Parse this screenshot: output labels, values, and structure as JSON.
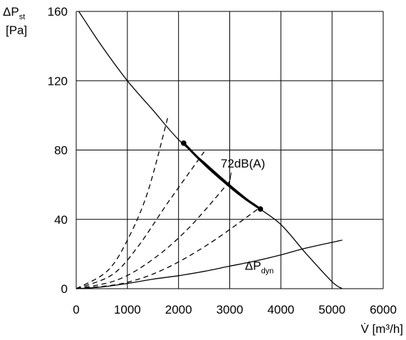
{
  "chart_data": {
    "type": "line",
    "ylabel": {
      "symbol": "ΔP",
      "subscript": "st",
      "unit": "[Pa]"
    },
    "xlabel": "V̇ [m³/h]",
    "xlim": [
      0,
      6000
    ],
    "ylim": [
      0,
      160
    ],
    "x_ticks": [
      "0",
      "1000",
      "2000",
      "3000",
      "4000",
      "5000",
      "6000"
    ],
    "y_ticks": [
      "0",
      "40",
      "80",
      "120",
      "160"
    ],
    "grid": true,
    "series": [
      {
        "role": "fan-curve",
        "points": [
          [
            50,
            160
          ],
          [
            500,
            140
          ],
          [
            1000,
            120
          ],
          [
            1500,
            103
          ],
          [
            2000,
            86
          ],
          [
            2500,
            73
          ],
          [
            3000,
            60
          ],
          [
            3500,
            48
          ],
          [
            4000,
            37
          ],
          [
            4500,
            20
          ],
          [
            5000,
            4
          ],
          [
            5200,
            0
          ]
        ]
      },
      {
        "role": "operating-range",
        "points": [
          [
            2100,
            84
          ],
          [
            2500,
            72
          ],
          [
            3000,
            59
          ],
          [
            3300,
            52
          ],
          [
            3600,
            46
          ]
        ],
        "endpoints": [
          [
            2100,
            84
          ],
          [
            3600,
            46
          ]
        ]
      },
      {
        "role": "system-curve",
        "points": [
          [
            0,
            0
          ],
          [
            500,
            1
          ],
          [
            1000,
            3
          ],
          [
            1500,
            5.5
          ],
          [
            2000,
            7.5
          ],
          [
            2500,
            10
          ],
          [
            3000,
            13
          ],
          [
            3500,
            16
          ],
          [
            4000,
            19.5
          ],
          [
            4500,
            23.5
          ],
          [
            5200,
            28
          ]
        ]
      },
      {
        "role": "system-parabola",
        "points": [
          [
            0,
            0
          ],
          [
            600,
            10
          ],
          [
            1000,
            28
          ],
          [
            1400,
            56
          ],
          [
            1800,
            100
          ]
        ]
      },
      {
        "role": "system-parabola",
        "points": [
          [
            0,
            0
          ],
          [
            700,
            8
          ],
          [
            1200,
            24
          ],
          [
            1800,
            50
          ],
          [
            2500,
            79
          ]
        ]
      },
      {
        "role": "system-parabola",
        "points": [
          [
            0,
            0
          ],
          [
            800,
            5
          ],
          [
            1500,
            17
          ],
          [
            2200,
            35
          ],
          [
            3000,
            62
          ]
        ]
      },
      {
        "role": "system-parabola",
        "points": [
          [
            0,
            0
          ],
          [
            900,
            3
          ],
          [
            1700,
            11
          ],
          [
            2600,
            26
          ],
          [
            3600,
            47
          ]
        ]
      }
    ],
    "annotations": [
      {
        "text": "72dB(A)",
        "x": 3020,
        "y": 72
      },
      {
        "symbol": "ΔP",
        "subscript": "dyn",
        "x": 3200,
        "y": 10
      }
    ]
  }
}
